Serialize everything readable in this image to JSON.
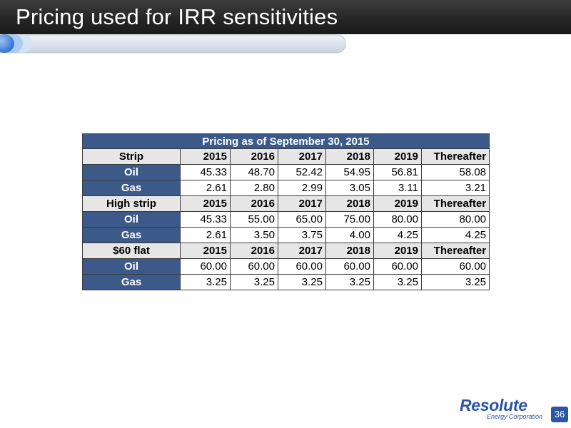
{
  "slide": {
    "title": "Pricing used for IRR sensitivities",
    "page_number": "36"
  },
  "table": {
    "caption": "Pricing as of September 30, 2015",
    "sections": [
      {
        "label": "Strip",
        "columns": [
          "2015",
          "2016",
          "2017",
          "2018",
          "2019",
          "Thereafter"
        ],
        "rows": [
          {
            "label": "Oil",
            "values": [
              "45.33",
              "48.70",
              "52.42",
              "54.95",
              "56.81",
              "58.08"
            ]
          },
          {
            "label": "Gas",
            "values": [
              "2.61",
              "2.80",
              "2.99",
              "3.05",
              "3.11",
              "3.21"
            ]
          }
        ]
      },
      {
        "label": "High strip",
        "columns": [
          "2015",
          "2016",
          "2017",
          "2018",
          "2019",
          "Thereafter"
        ],
        "rows": [
          {
            "label": "Oil",
            "values": [
              "45.33",
              "55.00",
              "65.00",
              "75.00",
              "80.00",
              "80.00"
            ]
          },
          {
            "label": "Gas",
            "values": [
              "2.61",
              "3.50",
              "3.75",
              "4.00",
              "4.25",
              "4.25"
            ]
          }
        ]
      },
      {
        "label": "$60 flat",
        "columns": [
          "2015",
          "2016",
          "2017",
          "2018",
          "2019",
          "Thereafter"
        ],
        "rows": [
          {
            "label": "Oil",
            "values": [
              "60.00",
              "60.00",
              "60.00",
              "60.00",
              "60.00",
              "60.00"
            ]
          },
          {
            "label": "Gas",
            "values": [
              "3.25",
              "3.25",
              "3.25",
              "3.25",
              "3.25",
              "3.25"
            ]
          }
        ]
      }
    ]
  },
  "logo": {
    "name": "Resolute",
    "tagline": "Energy Corporation"
  },
  "colors": {
    "header_bg": "#262626",
    "table_accent": "#3b5a8a",
    "section_bg": "#e6e6e6",
    "brand_blue": "#2a55a6"
  }
}
